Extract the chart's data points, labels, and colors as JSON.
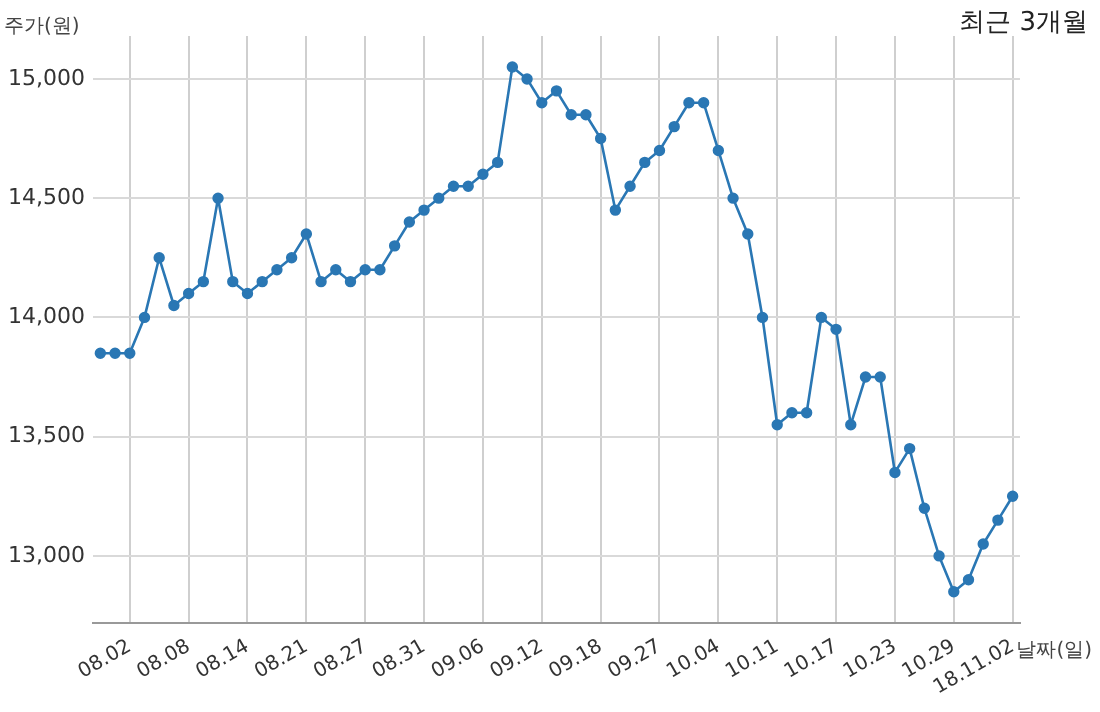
{
  "chart_data": {
    "type": "line",
    "title": "최근 3개월",
    "ylabel": "주가(원)",
    "xlabel": "날짜(일)",
    "categories": [
      null,
      null,
      "08.02",
      null,
      null,
      null,
      "08.08",
      null,
      null,
      null,
      "08.14",
      null,
      null,
      null,
      "08.21",
      null,
      null,
      null,
      "08.27",
      null,
      null,
      null,
      "08.31",
      null,
      null,
      null,
      "09.06",
      null,
      null,
      null,
      "09.12",
      null,
      null,
      null,
      "09.18",
      null,
      null,
      null,
      "09.27",
      null,
      null,
      null,
      "10.04",
      null,
      null,
      null,
      "10.11",
      null,
      null,
      null,
      "10.17",
      null,
      null,
      null,
      "10.23",
      null,
      null,
      null,
      "10.29",
      null,
      null,
      null,
      "18.11.02"
    ],
    "series": [
      {
        "color": "#2a77b4",
        "values": [
          13850,
          13850,
          13850,
          14000,
          14250,
          14050,
          14100,
          14150,
          14500,
          14150,
          14100,
          14150,
          14200,
          14250,
          14350,
          14150,
          14200,
          14150,
          14200,
          14200,
          14300,
          14400,
          14450,
          14500,
          14550,
          14550,
          14600,
          14650,
          15050,
          15000,
          14900,
          14950,
          14850,
          14850,
          14750,
          14450,
          14550,
          14650,
          14700,
          14800,
          14900,
          14900,
          14700,
          14500,
          14350,
          14000,
          13550,
          13600,
          13600,
          14000,
          13950,
          13550,
          13750,
          13750,
          13350,
          13450,
          13200,
          13000,
          12850,
          12900,
          13050,
          13150,
          13250
        ]
      }
    ],
    "ylim": [
      12720,
      15180
    ],
    "yticks": [
      {
        "value": 13000,
        "label": "13,000"
      },
      {
        "value": 13500,
        "label": "13,500"
      },
      {
        "value": 14000,
        "label": "14,000"
      },
      {
        "value": 14500,
        "label": "14,500"
      },
      {
        "value": 15000,
        "label": "15,000"
      }
    ],
    "grid": true,
    "legend": false,
    "marker": "circle",
    "line_style": "solid"
  }
}
